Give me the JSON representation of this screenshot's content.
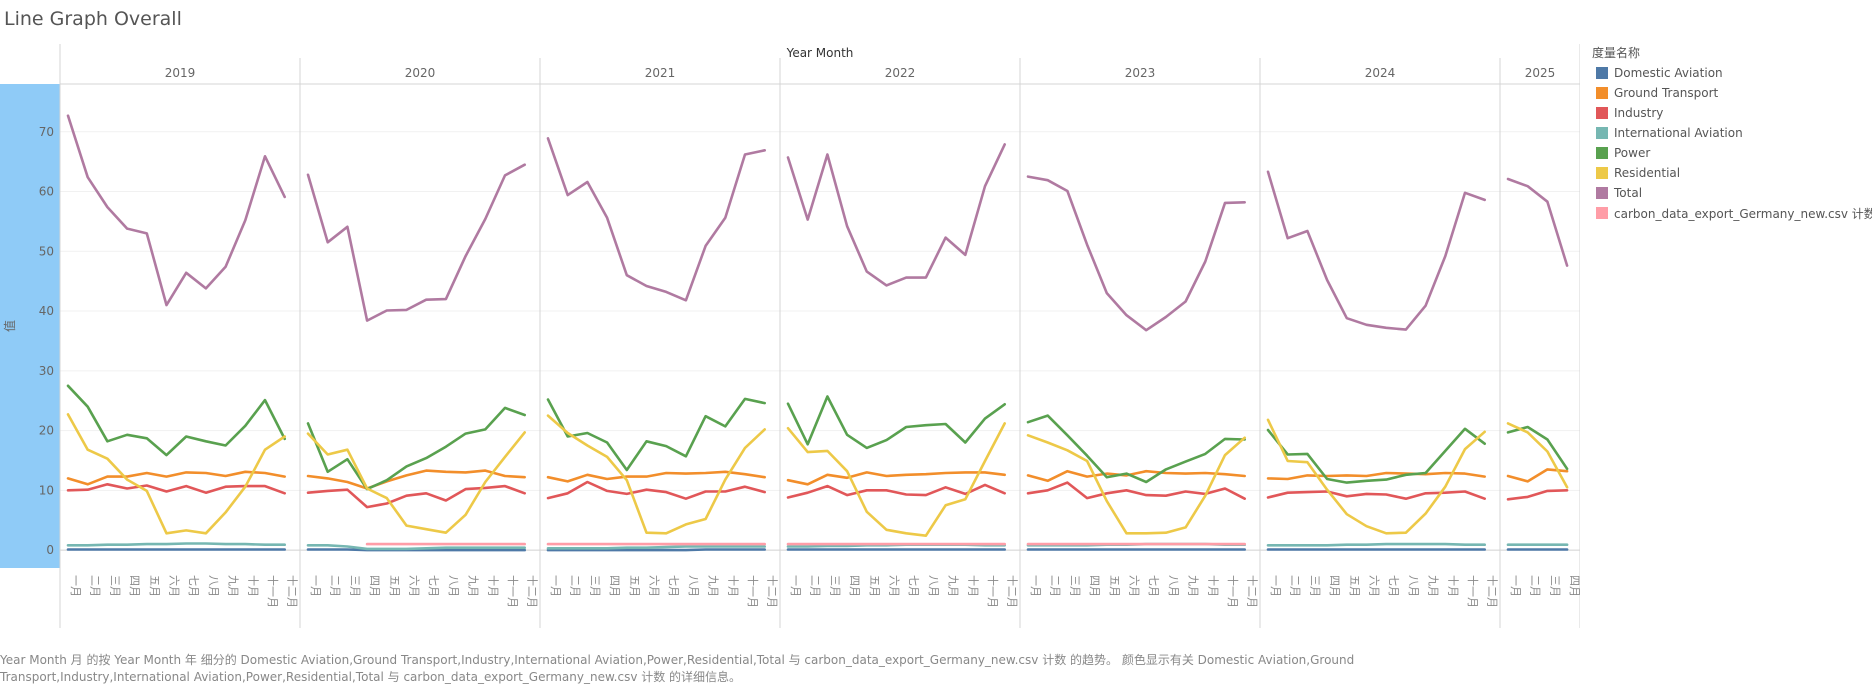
{
  "page": {
    "title": "Line Graph Overall"
  },
  "caption": "Year Month 月 的按 Year Month 年 细分的 Domestic Aviation,Ground Transport,Industry,International Aviation,Power,Residential,Total 与 carbon_data_export_Germany_new.csv 计数 的趋势。 颜色显示有关 Domestic Aviation,Ground Transport,Industry,International Aviation,Power,Residential,Total 与 carbon_data_export_Germany_new.csv 计数 的详细信息。",
  "legend": {
    "title": "度量名称"
  },
  "chart_data": {
    "type": "line",
    "xlabel": "Year Month",
    "ylabel": "值",
    "ylim": [
      -3,
      78
    ],
    "yticks": [
      0,
      10,
      20,
      30,
      40,
      50,
      60,
      70
    ],
    "years": [
      "2019",
      "2020",
      "2021",
      "2022",
      "2023",
      "2024",
      "2025"
    ],
    "months": [
      "一月",
      "二月",
      "三月",
      "四月",
      "五月",
      "六月",
      "七月",
      "八月",
      "九月",
      "十月",
      "十一月",
      "十二月"
    ],
    "series": [
      {
        "name": "Domestic Aviation",
        "color": "#4e79a7",
        "values": [
          [
            0.1,
            0.1,
            0.1,
            0.1,
            0.1,
            0.1,
            0.1,
            0.1,
            0.1,
            0.1,
            0.1,
            0.1
          ],
          [
            0.1,
            0.1,
            0.1,
            0.0,
            0.0,
            0.0,
            0.0,
            0.0,
            0.0,
            0.0,
            0.0,
            0.0
          ],
          [
            0.0,
            0.0,
            0.0,
            0.0,
            0.0,
            0.0,
            0.0,
            0.0,
            0.1,
            0.1,
            0.1,
            0.1
          ],
          [
            0.1,
            0.1,
            0.1,
            0.1,
            0.1,
            0.1,
            0.1,
            0.1,
            0.1,
            0.1,
            0.1,
            0.1
          ],
          [
            0.1,
            0.1,
            0.1,
            0.1,
            0.1,
            0.1,
            0.1,
            0.1,
            0.1,
            0.1,
            0.1,
            0.1
          ],
          [
            0.1,
            0.1,
            0.1,
            0.1,
            0.1,
            0.1,
            0.1,
            0.1,
            0.1,
            0.1,
            0.1,
            0.1
          ],
          [
            0.1,
            0.1,
            0.1,
            0.1
          ]
        ]
      },
      {
        "name": "Ground Transport",
        "color": "#f28e2b",
        "values": [
          [
            12.0,
            11.0,
            12.3,
            12.3,
            12.9,
            12.3,
            13.0,
            12.9,
            12.4,
            13.1,
            12.9,
            12.3
          ],
          [
            12.4,
            12.0,
            11.4,
            10.3,
            11.5,
            12.5,
            13.3,
            13.1,
            13.0,
            13.3,
            12.4,
            12.2
          ],
          [
            12.2,
            11.5,
            12.6,
            11.9,
            12.3,
            12.3,
            12.9,
            12.8,
            12.9,
            13.1,
            12.7,
            12.2
          ],
          [
            11.7,
            11.0,
            12.6,
            12.1,
            13.0,
            12.4,
            12.6,
            12.7,
            12.9,
            13.0,
            13.0,
            12.6
          ],
          [
            12.5,
            11.6,
            13.2,
            12.3,
            12.8,
            12.5,
            13.2,
            12.9,
            12.8,
            12.9,
            12.7,
            12.4
          ],
          [
            12.0,
            11.9,
            12.5,
            12.4,
            12.5,
            12.4,
            12.9,
            12.8,
            12.7,
            12.9,
            12.8,
            12.3
          ],
          [
            12.4,
            11.5,
            13.5,
            13.2
          ]
        ]
      },
      {
        "name": "Industry",
        "color": "#e15759",
        "values": [
          [
            10.0,
            10.1,
            11.0,
            10.3,
            10.8,
            9.8,
            10.7,
            9.6,
            10.6,
            10.7,
            10.7,
            9.5
          ],
          [
            9.6,
            9.9,
            10.1,
            7.2,
            7.8,
            9.1,
            9.5,
            8.3,
            10.2,
            10.4,
            10.7,
            9.5
          ],
          [
            8.7,
            9.5,
            11.4,
            9.9,
            9.4,
            10.1,
            9.7,
            8.6,
            9.8,
            9.8,
            10.6,
            9.7
          ],
          [
            8.8,
            9.6,
            10.7,
            9.2,
            10.0,
            10.0,
            9.3,
            9.2,
            10.5,
            9.4,
            10.9,
            9.5
          ],
          [
            9.5,
            10.0,
            11.3,
            8.7,
            9.5,
            10.0,
            9.2,
            9.1,
            9.8,
            9.4,
            10.3,
            8.6
          ],
          [
            8.8,
            9.6,
            9.7,
            9.8,
            9.0,
            9.4,
            9.3,
            8.6,
            9.5,
            9.6,
            9.8,
            8.6
          ],
          [
            8.5,
            8.9,
            9.9,
            10.0
          ]
        ]
      },
      {
        "name": "International Aviation",
        "color": "#76b7b2",
        "values": [
          [
            0.8,
            0.8,
            0.9,
            0.9,
            1.0,
            1.0,
            1.1,
            1.1,
            1.0,
            1.0,
            0.9,
            0.9
          ],
          [
            0.8,
            0.8,
            0.6,
            0.2,
            0.2,
            0.2,
            0.3,
            0.4,
            0.4,
            0.4,
            0.4,
            0.4
          ],
          [
            0.3,
            0.3,
            0.3,
            0.3,
            0.4,
            0.4,
            0.5,
            0.6,
            0.6,
            0.6,
            0.6,
            0.6
          ],
          [
            0.6,
            0.6,
            0.7,
            0.7,
            0.8,
            0.8,
            0.9,
            0.9,
            0.9,
            0.9,
            0.8,
            0.8
          ],
          [
            0.8,
            0.8,
            0.8,
            0.8,
            0.9,
            0.9,
            1.0,
            1.0,
            1.0,
            1.0,
            0.9,
            0.9
          ],
          [
            0.8,
            0.8,
            0.8,
            0.8,
            0.9,
            0.9,
            1.0,
            1.0,
            1.0,
            1.0,
            0.9,
            0.9
          ],
          [
            0.9,
            0.9,
            0.9,
            0.9
          ]
        ]
      },
      {
        "name": "Power",
        "color": "#59a14f",
        "values": [
          [
            27.5,
            24.0,
            18.2,
            19.3,
            18.7,
            15.9,
            19.0,
            18.2,
            17.5,
            20.8,
            25.1,
            18.6
          ],
          [
            21.2,
            13.1,
            15.2,
            10.2,
            11.7,
            14.0,
            15.4,
            17.3,
            19.5,
            20.2,
            23.8,
            22.6
          ],
          [
            25.2,
            19.0,
            19.6,
            18.0,
            13.4,
            18.2,
            17.4,
            15.7,
            22.4,
            20.7,
            25.3,
            24.6
          ],
          [
            24.5,
            17.7,
            25.7,
            19.3,
            17.1,
            18.4,
            20.6,
            20.9,
            21.1,
            18.0,
            22.0,
            24.4
          ],
          [
            21.4,
            22.5,
            19.2,
            15.8,
            12.2,
            12.8,
            11.4,
            13.5,
            14.8,
            16.1,
            18.6,
            18.5
          ],
          [
            20.1,
            16.0,
            16.1,
            11.9,
            11.3,
            11.6,
            11.8,
            12.6,
            12.9,
            16.6,
            20.3,
            17.8
          ],
          [
            19.7,
            20.6,
            18.5,
            13.6
          ]
        ]
      },
      {
        "name": "Residential",
        "color": "#edc948",
        "values": [
          [
            22.7,
            16.8,
            15.3,
            11.8,
            9.9,
            2.8,
            3.3,
            2.8,
            6.3,
            10.6,
            16.8,
            19.0
          ],
          [
            19.5,
            16.0,
            16.8,
            10.3,
            8.7,
            4.1,
            3.5,
            2.9,
            5.9,
            11.4,
            15.6,
            19.7
          ],
          [
            22.5,
            19.6,
            17.5,
            15.6,
            11.7,
            2.9,
            2.8,
            4.3,
            5.2,
            11.8,
            17.1,
            20.2
          ],
          [
            20.4,
            16.4,
            16.6,
            13.2,
            6.4,
            3.4,
            2.8,
            2.4,
            7.5,
            8.5,
            14.9,
            21.2
          ],
          [
            19.2,
            18.0,
            16.7,
            14.9,
            8.2,
            2.8,
            2.8,
            2.9,
            3.8,
            9.1,
            15.9,
            18.8
          ],
          [
            21.8,
            14.9,
            14.7,
            10.1,
            6.0,
            4.0,
            2.8,
            2.9,
            6.1,
            10.6,
            16.9,
            19.8
          ],
          [
            21.2,
            19.7,
            16.5,
            10.5
          ]
        ]
      },
      {
        "name": "Total",
        "color": "#b07aa1",
        "values": [
          [
            72.7,
            62.4,
            57.4,
            53.8,
            53.0,
            41.0,
            46.4,
            43.8,
            47.4,
            55.2,
            65.9,
            59.1
          ],
          [
            62.8,
            51.5,
            54.1,
            38.4,
            40.1,
            40.2,
            41.9,
            42.0,
            49.2,
            55.4,
            62.7,
            64.5
          ],
          [
            68.9,
            59.4,
            61.6,
            55.6,
            46.0,
            44.2,
            43.2,
            41.8,
            50.9,
            55.6,
            66.2,
            66.9
          ],
          [
            65.7,
            55.3,
            66.2,
            54.2,
            46.6,
            44.3,
            45.6,
            45.6,
            52.3,
            49.4,
            60.9,
            67.9
          ],
          [
            62.5,
            61.9,
            60.1,
            51.1,
            43.0,
            39.3,
            36.8,
            39.0,
            41.6,
            48.3,
            58.1,
            58.2
          ],
          [
            63.3,
            52.2,
            53.4,
            45.2,
            38.8,
            37.7,
            37.2,
            36.9,
            40.9,
            49.2,
            59.8,
            58.6
          ],
          [
            62.1,
            60.9,
            58.3,
            47.6
          ]
        ]
      },
      {
        "name": "carbon_data_export_Germany_new.csv 计数",
        "color": "#ff9da7",
        "values": [
          [
            null,
            null,
            null,
            null,
            null,
            null,
            null,
            null,
            null,
            null,
            null,
            null
          ],
          [
            null,
            null,
            null,
            1.0,
            1.0,
            1.0,
            1.0,
            1.0,
            1.0,
            1.0,
            1.0,
            1.0
          ],
          [
            1.0,
            1.0,
            1.0,
            1.0,
            1.0,
            1.0,
            1.0,
            1.0,
            1.0,
            1.0,
            1.0,
            1.0
          ],
          [
            1.0,
            1.0,
            1.0,
            1.0,
            1.0,
            1.0,
            1.0,
            1.0,
            1.0,
            1.0,
            1.0,
            1.0
          ],
          [
            1.0,
            1.0,
            1.0,
            1.0,
            1.0,
            1.0,
            1.0,
            1.0,
            1.0,
            1.0,
            1.0,
            1.0
          ],
          [
            null,
            null,
            null,
            null,
            null,
            null,
            null,
            null,
            null,
            null,
            null,
            null
          ],
          [
            null,
            null,
            null,
            null
          ]
        ]
      }
    ]
  }
}
